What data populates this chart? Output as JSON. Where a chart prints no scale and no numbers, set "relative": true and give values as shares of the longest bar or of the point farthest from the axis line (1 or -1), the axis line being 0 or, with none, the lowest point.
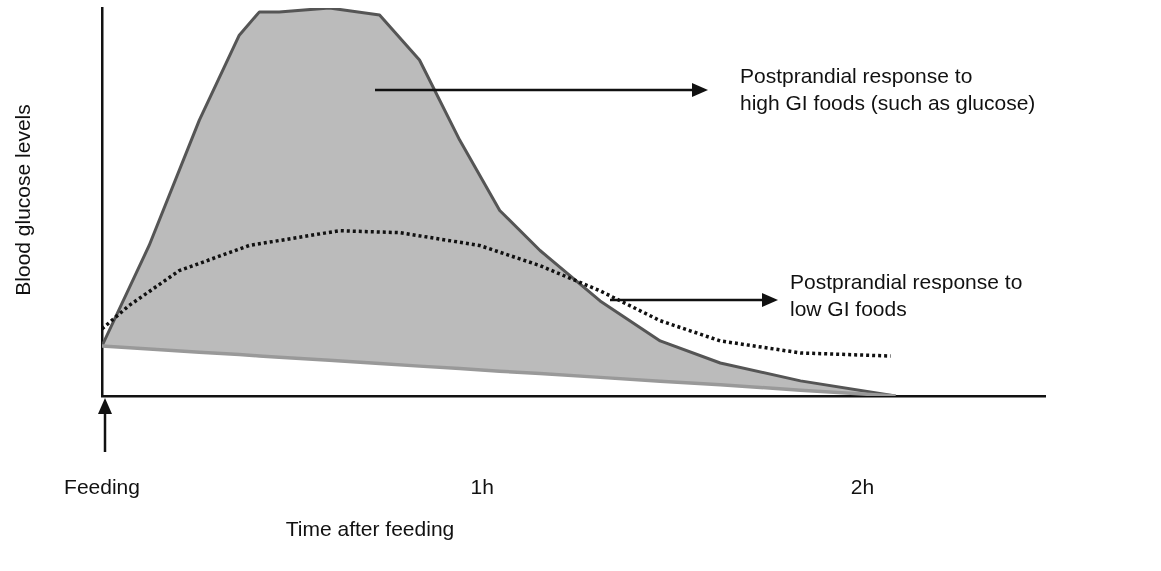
{
  "chart_data": {
    "type": "line",
    "relative": true,
    "xlabel": "Time after feeding",
    "ylabel": "Blood glucose levels",
    "x": [
      0,
      0.124,
      0.256,
      0.361,
      0.414,
      0.466,
      0.598,
      0.73,
      0.835,
      0.941,
      1.046,
      1.152,
      1.31,
      1.468,
      1.626,
      1.837,
      2.087
    ],
    "xlim": [
      0,
      2.48
    ],
    "xticks": [
      {
        "value": 0,
        "label": "Feeding"
      },
      {
        "value": 1,
        "label": "1h"
      },
      {
        "value": 2,
        "label": "2h"
      }
    ],
    "grid": false,
    "legend": false,
    "marker": "none",
    "series": [
      {
        "color": "#999999",
        "line_style": "solid",
        "values": [
          0.129,
          0.121,
          0.113,
          0.107,
          0.103,
          0.1,
          0.092,
          0.084,
          0.077,
          0.071,
          0.064,
          0.058,
          0.048,
          0.038,
          0.029,
          0.015,
          0
        ]
      },
      {
        "type": "area",
        "color": "#555555",
        "line_style": "solid",
        "values": [
          0.129,
          0.388,
          0.711,
          0.93,
          0.99,
          0.99,
          1,
          0.982,
          0.866,
          0.659,
          0.478,
          0.375,
          0.245,
          0.142,
          0.085,
          0.039,
          0
        ]
      },
      {
        "color": "#111111",
        "line_style": "dotted",
        "x": [
          0,
          0.071,
          0.203,
          0.387,
          0.624,
          0.783,
          0.993,
          1.152,
          1.31,
          1.468,
          1.626,
          1.837,
          2.074
        ],
        "values": [
          0.173,
          0.233,
          0.323,
          0.388,
          0.426,
          0.421,
          0.388,
          0.336,
          0.271,
          0.194,
          0.142,
          0.111,
          0.103
        ]
      }
    ],
    "annotations": [
      "Postprandial response to\nhigh GI foods (such as glucose)",
      "Postprandial response to\nlow GI foods"
    ]
  }
}
